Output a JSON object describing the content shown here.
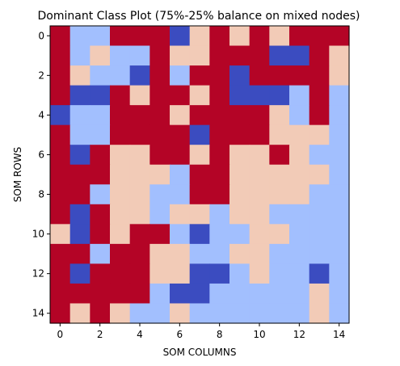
{
  "chart_data": {
    "type": "heatmap",
    "title": "Dominant Class Plot (75%-25% balance on mixed nodes)",
    "xlabel": "SOM COLUMNS",
    "ylabel": "SOM ROWS",
    "x_ticks": [
      "0",
      "2",
      "4",
      "6",
      "8",
      "10",
      "12",
      "14"
    ],
    "y_ticks": [
      "0",
      "2",
      "4",
      "6",
      "8",
      "10",
      "12",
      "14"
    ],
    "xlim": [
      -0.5,
      14.5
    ],
    "ylim": [
      14.5,
      -0.5
    ],
    "grid": false,
    "legend": "none",
    "colors": {
      "0": "#3b4cc0",
      "1": "#a2bffe",
      "2": "#f2cbb7",
      "3": "#b40426"
    },
    "rows": 15,
    "cols": 15,
    "cells": [
      [
        3,
        1,
        1,
        3,
        3,
        3,
        0,
        2,
        3,
        2,
        3,
        2,
        3,
        3,
        3
      ],
      [
        3,
        1,
        2,
        1,
        1,
        3,
        2,
        2,
        3,
        3,
        3,
        0,
        0,
        3,
        2
      ],
      [
        3,
        2,
        1,
        1,
        0,
        3,
        1,
        3,
        3,
        0,
        3,
        3,
        3,
        3,
        2
      ],
      [
        3,
        0,
        0,
        3,
        2,
        3,
        3,
        2,
        3,
        0,
        0,
        0,
        1,
        3,
        1
      ],
      [
        0,
        1,
        1,
        3,
        3,
        3,
        2,
        3,
        3,
        3,
        3,
        2,
        1,
        3,
        1
      ],
      [
        3,
        1,
        1,
        3,
        3,
        3,
        3,
        0,
        3,
        3,
        3,
        2,
        2,
        2,
        1
      ],
      [
        3,
        0,
        3,
        2,
        2,
        3,
        3,
        2,
        3,
        2,
        2,
        3,
        2,
        1,
        1
      ],
      [
        3,
        3,
        3,
        2,
        2,
        2,
        1,
        3,
        3,
        2,
        2,
        2,
        2,
        2,
        1
      ],
      [
        3,
        3,
        1,
        2,
        2,
        1,
        1,
        3,
        3,
        2,
        2,
        2,
        2,
        1,
        1
      ],
      [
        3,
        0,
        3,
        2,
        2,
        1,
        2,
        2,
        1,
        2,
        2,
        1,
        1,
        1,
        1
      ],
      [
        2,
        0,
        3,
        2,
        3,
        3,
        1,
        0,
        1,
        1,
        2,
        2,
        1,
        1,
        1
      ],
      [
        3,
        3,
        1,
        3,
        3,
        2,
        2,
        1,
        1,
        2,
        2,
        1,
        1,
        1,
        1
      ],
      [
        3,
        0,
        3,
        3,
        3,
        2,
        2,
        0,
        0,
        1,
        2,
        1,
        1,
        0,
        1
      ],
      [
        3,
        3,
        3,
        3,
        3,
        1,
        0,
        0,
        1,
        1,
        1,
        1,
        1,
        2,
        1
      ],
      [
        3,
        2,
        3,
        2,
        1,
        1,
        2,
        1,
        1,
        1,
        1,
        1,
        1,
        2,
        1
      ]
    ]
  }
}
